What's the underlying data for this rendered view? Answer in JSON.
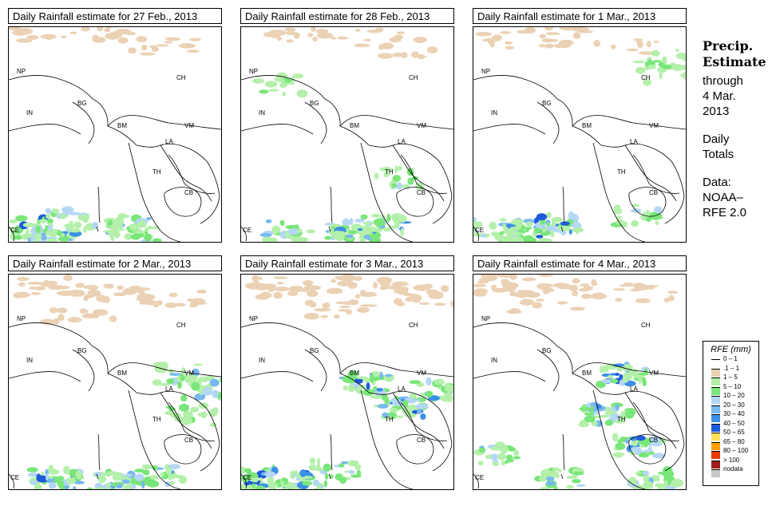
{
  "panels": [
    {
      "title": "Daily Rainfall estimate for  27 Feb., 2013",
      "rain": [
        [
          4,
          18,
          0.3
        ],
        [
          40,
          286,
          0.8
        ],
        [
          90,
          276,
          0.5
        ],
        [
          160,
          280,
          0.6
        ],
        [
          170,
          292,
          0.4
        ],
        [
          70,
          300,
          0.7
        ]
      ],
      "tan": [
        [
          40,
          44,
          0.5
        ],
        [
          120,
          40,
          0.6
        ],
        [
          200,
          60,
          0.4
        ]
      ]
    },
    {
      "title": "Daily Rainfall estimate for  28 Feb., 2013",
      "rain": [
        [
          200,
          54,
          0.3
        ],
        [
          350,
          108,
          0.3
        ],
        [
          440,
          290,
          0.8
        ],
        [
          480,
          282,
          0.7
        ],
        [
          360,
          290,
          0.5
        ],
        [
          500,
          222,
          0.4
        ]
      ],
      "tan": [
        [
          380,
          40,
          0.5
        ],
        [
          460,
          48,
          0.4
        ],
        [
          520,
          60,
          0.3
        ]
      ]
    },
    {
      "title": "Daily Rainfall estimate for  1 Mar., 2013",
      "rain": [
        [
          660,
          290,
          0.9
        ],
        [
          700,
          282,
          0.8
        ],
        [
          620,
          288,
          0.5
        ],
        [
          800,
          270,
          0.4
        ],
        [
          830,
          76,
          0.4
        ],
        [
          840,
          96,
          0.3
        ]
      ],
      "tan": [
        [
          640,
          48,
          0.4
        ],
        [
          720,
          46,
          0.5
        ],
        [
          780,
          56,
          0.3
        ]
      ]
    },
    {
      "title": "Daily Rainfall estimate for  2 Mar., 2013",
      "rain": [
        [
          70,
          600,
          0.9
        ],
        [
          140,
          604,
          0.8
        ],
        [
          200,
          596,
          0.6
        ],
        [
          220,
          470,
          0.5
        ],
        [
          260,
          486,
          0.6
        ],
        [
          240,
          520,
          0.4
        ]
      ],
      "tan": [
        [
          60,
          360,
          0.6
        ],
        [
          140,
          368,
          0.6
        ],
        [
          220,
          372,
          0.5
        ],
        [
          100,
          392,
          0.4
        ]
      ]
    },
    {
      "title": "Daily Rainfall estimate for  3 Mar., 2013",
      "rain": [
        [
          320,
          600,
          1.0
        ],
        [
          380,
          604,
          0.8
        ],
        [
          460,
          480,
          0.9
        ],
        [
          500,
          510,
          0.8
        ],
        [
          540,
          490,
          0.6
        ],
        [
          420,
          590,
          0.5
        ]
      ],
      "tan": [
        [
          360,
          360,
          0.7
        ],
        [
          460,
          360,
          0.8
        ],
        [
          540,
          370,
          0.6
        ],
        [
          420,
          390,
          0.5
        ]
      ]
    },
    {
      "title": "Daily Rainfall estimate for  4 Mar., 2013",
      "rain": [
        [
          780,
          470,
          0.9
        ],
        [
          760,
          520,
          0.8
        ],
        [
          800,
          560,
          0.8
        ],
        [
          820,
          600,
          0.6
        ],
        [
          620,
          570,
          0.5
        ],
        [
          700,
          600,
          0.5
        ]
      ],
      "tan": [
        [
          640,
          356,
          0.7
        ],
        [
          720,
          362,
          0.6
        ],
        [
          800,
          368,
          0.5
        ],
        [
          680,
          380,
          0.4
        ]
      ]
    }
  ],
  "map_labels": [
    "NP",
    "CH",
    "IN",
    "BG",
    "BM",
    "VM",
    "LA",
    "TH",
    "CB",
    "CE"
  ],
  "side": {
    "title1": "Precip.",
    "title2": "Estimate",
    "through": "through",
    "date1": "4 Mar.",
    "date2": "2013",
    "daily1": "Daily",
    "daily2": "Totals",
    "data1": "Data:",
    "data2": "NOAA–",
    "data3": "RFE 2.0"
  },
  "legend": {
    "title": "RFE (mm)",
    "items": [
      {
        "label": "0 – 1",
        "color": "#ffffff"
      },
      {
        "label": ".1 – 1",
        "color": "#ebd2b4"
      },
      {
        "label": "1 – 5",
        "color": "#b4f0aa"
      },
      {
        "label": "5 – 10",
        "color": "#78e678"
      },
      {
        "label": "10 – 20",
        "color": "#b4d7f5"
      },
      {
        "label": "20 – 30",
        "color": "#78b9f0"
      },
      {
        "label": "30 – 40",
        "color": "#3c91e6"
      },
      {
        "label": "40 – 50",
        "color": "#1e5adc"
      },
      {
        "label": "50 – 65",
        "color": "#ffe15a"
      },
      {
        "label": "65 – 80",
        "color": "#ffa000"
      },
      {
        "label": "80 – 100",
        "color": "#e63c00"
      },
      {
        "label": "> 100",
        "color": "#a01e1e"
      },
      {
        "label": "nodata",
        "color": "#c8c8c8"
      }
    ]
  }
}
